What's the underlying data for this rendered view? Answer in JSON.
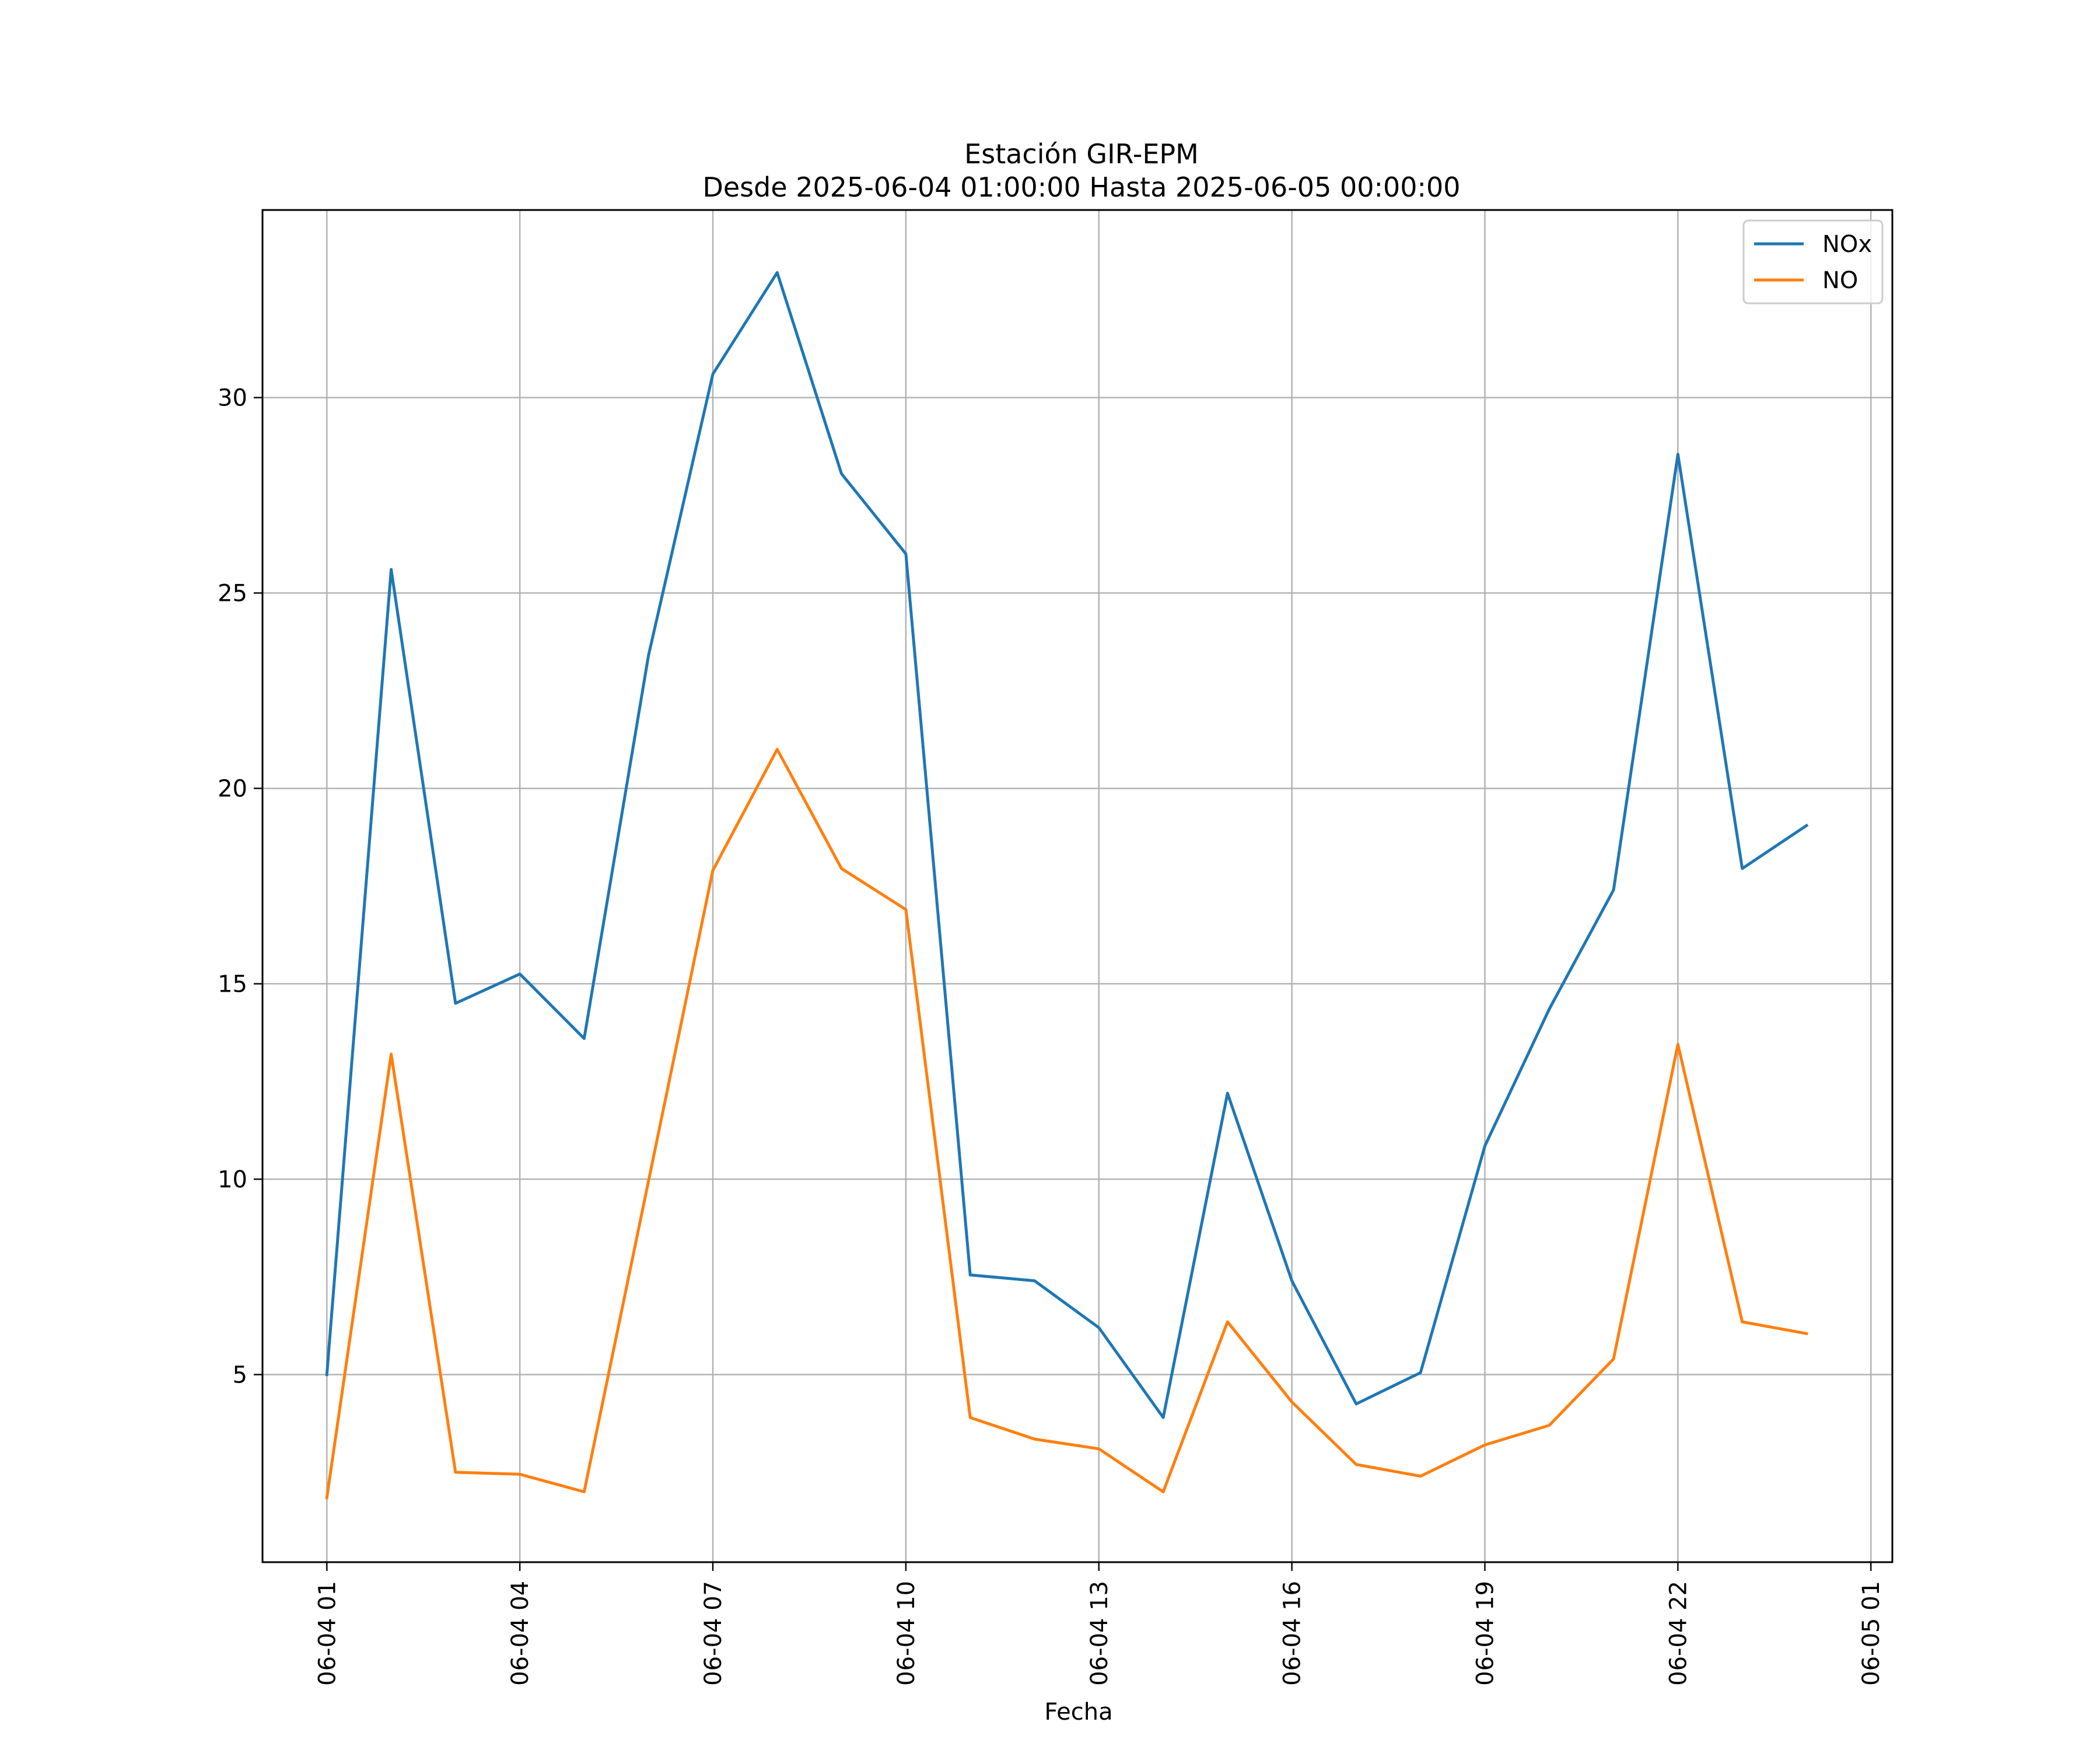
{
  "chart_data": {
    "type": "line",
    "title": "Estación GIR-EPM",
    "subtitle": "Desde 2025-06-04 01:00:00 Hasta 2025-06-05 00:00:00",
    "xlabel": "Fecha",
    "ylabel": "",
    "grid": true,
    "legend_position": "top-right",
    "x": [
      "2025-06-04 01:00",
      "2025-06-04 02:00",
      "2025-06-04 03:00",
      "2025-06-04 04:00",
      "2025-06-04 05:00",
      "2025-06-04 06:00",
      "2025-06-04 07:00",
      "2025-06-04 08:00",
      "2025-06-04 09:00",
      "2025-06-04 10:00",
      "2025-06-04 11:00",
      "2025-06-04 12:00",
      "2025-06-04 13:00",
      "2025-06-04 14:00",
      "2025-06-04 15:00",
      "2025-06-04 16:00",
      "2025-06-04 17:00",
      "2025-06-04 18:00",
      "2025-06-04 19:00",
      "2025-06-04 20:00",
      "2025-06-04 21:00",
      "2025-06-04 22:00",
      "2025-06-04 23:00",
      "2025-06-05 00:00"
    ],
    "xlim": [
      "2025-06-04 00:00",
      "2025-06-05 01:20"
    ],
    "ylim": [
      0.2,
      34.8
    ],
    "x_ticks": [
      "06-04 01",
      "06-04 04",
      "06-04 07",
      "06-04 10",
      "06-04 13",
      "06-04 16",
      "06-04 19",
      "06-04 22",
      "06-05 01"
    ],
    "x_tick_values": [
      "2025-06-04 01:00",
      "2025-06-04 04:00",
      "2025-06-04 07:00",
      "2025-06-04 10:00",
      "2025-06-04 13:00",
      "2025-06-04 16:00",
      "2025-06-04 19:00",
      "2025-06-04 22:00",
      "2025-06-05 01:00"
    ],
    "y_ticks": [
      5,
      10,
      15,
      20,
      25,
      30
    ],
    "series": [
      {
        "name": "NOx",
        "color": "#1f77b4",
        "values": [
          5.0,
          25.6,
          14.5,
          15.25,
          13.6,
          23.4,
          30.6,
          33.2,
          28.05,
          26.0,
          7.55,
          7.4,
          6.2,
          3.9,
          12.2,
          7.4,
          4.25,
          5.05,
          10.85,
          14.35,
          17.4,
          28.55,
          17.95,
          19.05
        ]
      },
      {
        "name": "NO",
        "color": "#ff7f0e",
        "values": [
          1.85,
          13.2,
          2.5,
          2.45,
          2.0,
          9.95,
          17.9,
          21.0,
          17.95,
          16.9,
          3.9,
          3.35,
          3.1,
          2.0,
          6.35,
          4.3,
          2.7,
          2.4,
          3.2,
          3.7,
          5.4,
          13.45,
          6.35,
          6.05
        ]
      }
    ]
  }
}
